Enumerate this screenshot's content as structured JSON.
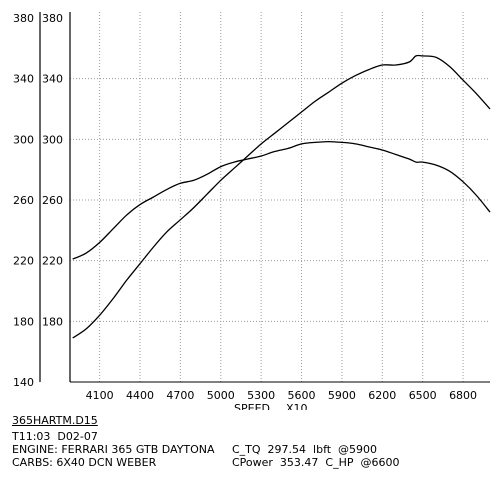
{
  "chart_data": {
    "type": "line",
    "x_ticks": [
      4100,
      4400,
      4700,
      5000,
      5300,
      5600,
      5900,
      6200,
      6500,
      6800
    ],
    "y_ticks": [
      180,
      220,
      260,
      300,
      340,
      380
    ],
    "y_ticks_left": [
      140,
      180,
      220,
      260,
      300,
      340,
      380
    ],
    "xlim": [
      3880,
      7000
    ],
    "ylim": [
      140,
      380
    ],
    "xlabel": "SPEED",
    "xlabel_multiplier": "X10",
    "grid": true,
    "series": [
      {
        "x": [
          3900,
          4000,
          4100,
          4200,
          4300,
          4400,
          4500,
          4600,
          4700,
          4800,
          4900,
          5000,
          5100,
          5200,
          5300,
          5400,
          5500,
          5600,
          5700,
          5800,
          5900,
          6000,
          6100,
          6200,
          6300,
          6400,
          6450,
          6500,
          6600,
          6700,
          6800,
          6900,
          7000
        ],
        "values": [
          221,
          225,
          232,
          241,
          250,
          257,
          262,
          267,
          271,
          273,
          277,
          282,
          285,
          287,
          289,
          292,
          294,
          297,
          298,
          298.5,
          298,
          297,
          295,
          293,
          290,
          287,
          285,
          285,
          283,
          279,
          272,
          263,
          252
        ]
      },
      {
        "x": [
          3900,
          4000,
          4100,
          4200,
          4300,
          4400,
          4500,
          4600,
          4700,
          4800,
          4900,
          5000,
          5100,
          5200,
          5300,
          5400,
          5500,
          5600,
          5700,
          5800,
          5900,
          6000,
          6100,
          6200,
          6300,
          6400,
          6450,
          6500,
          6600,
          6700,
          6800,
          6900,
          7000
        ],
        "values": [
          169,
          175,
          184,
          195,
          207,
          218,
          229,
          239,
          247,
          255,
          264,
          273,
          281,
          289,
          297,
          304,
          311,
          318,
          325,
          331,
          337,
          342,
          346,
          349,
          349,
          351,
          355,
          355,
          354,
          348,
          339,
          330,
          320
        ]
      }
    ]
  },
  "footer": {
    "file": "365HARTM.D15",
    "time_date": "T11:03  D02-07",
    "engine": "ENGINE: FERRARI 365 GTB DAYTONA",
    "carbs": "CARBS: 6X40 DCN WEBER",
    "ctq": "C_TQ  297.54  lbft  @5900",
    "cpower": "CPower  353.47  C_HP  @6600"
  }
}
